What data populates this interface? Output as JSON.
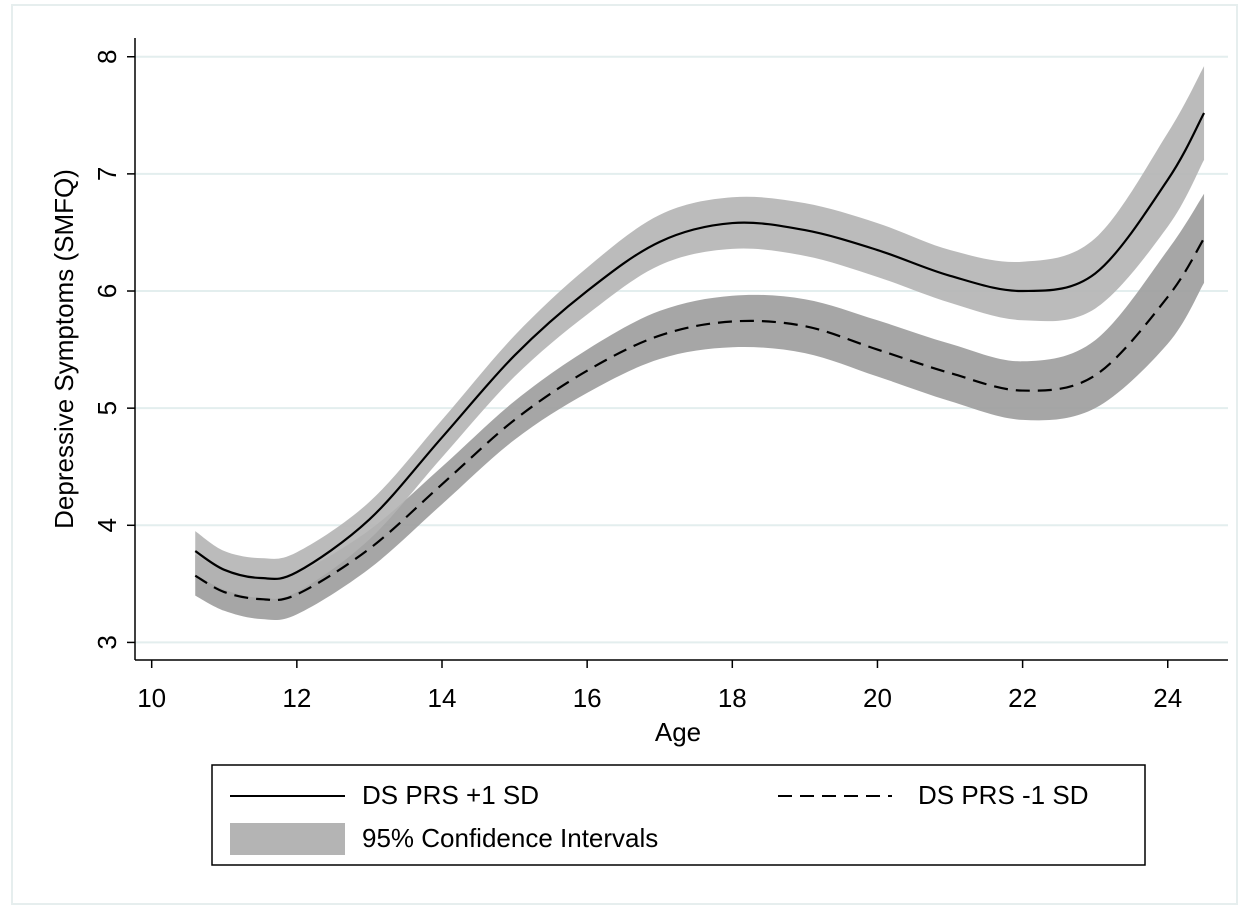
{
  "chart_data": {
    "type": "line",
    "x_label": "Age",
    "y_label": "Depressive Symptoms (SMFQ)",
    "x": [
      10.6,
      11,
      11.5,
      12,
      13,
      14,
      15,
      16,
      17,
      18,
      19,
      20,
      21,
      22,
      23,
      24,
      24.5
    ],
    "series": [
      {
        "name": "DS PRS +1 SD",
        "color": "#000000",
        "dash": false,
        "values": [
          3.78,
          3.62,
          3.55,
          3.6,
          4.05,
          4.75,
          5.45,
          6.0,
          6.42,
          6.58,
          6.52,
          6.35,
          6.13,
          6.0,
          6.15,
          6.95,
          7.52
        ]
      },
      {
        "name": "DS PRS -1 SD",
        "color": "#000000",
        "dash": true,
        "values": [
          3.57,
          3.43,
          3.37,
          3.41,
          3.8,
          4.35,
          4.9,
          5.32,
          5.62,
          5.74,
          5.7,
          5.5,
          5.3,
          5.15,
          5.28,
          5.95,
          6.45
        ]
      }
    ],
    "band_name": "95% Confidence Intervals",
    "band_color": "#b4b4b4",
    "bands": [
      {
        "color": "#9c9c9c",
        "upper": [
          3.75,
          3.62,
          3.55,
          3.59,
          3.96,
          4.5,
          5.06,
          5.5,
          5.83,
          5.96,
          5.93,
          5.75,
          5.55,
          5.4,
          5.58,
          6.35,
          6.83
        ],
        "lower": [
          3.4,
          3.27,
          3.2,
          3.24,
          3.63,
          4.18,
          4.73,
          5.13,
          5.42,
          5.52,
          5.47,
          5.27,
          5.06,
          4.9,
          5.0,
          5.55,
          6.07
        ]
      },
      {
        "color": "#b4b4b4",
        "upper": [
          3.95,
          3.78,
          3.72,
          3.77,
          4.2,
          4.9,
          5.62,
          6.2,
          6.65,
          6.8,
          6.75,
          6.58,
          6.35,
          6.25,
          6.45,
          7.35,
          7.92
        ],
        "lower": [
          3.58,
          3.45,
          3.38,
          3.43,
          3.88,
          4.58,
          5.27,
          5.8,
          6.22,
          6.36,
          6.3,
          6.12,
          5.9,
          5.75,
          5.85,
          6.55,
          7.12
        ]
      }
    ],
    "xlim": [
      9.77,
      24.83
    ],
    "xticks": [
      10,
      12,
      14,
      16,
      18,
      20,
      22,
      24
    ],
    "ylim": [
      2.85,
      8.16
    ],
    "yticks": [
      3,
      4,
      5,
      6,
      7,
      8
    ],
    "grid": true
  }
}
